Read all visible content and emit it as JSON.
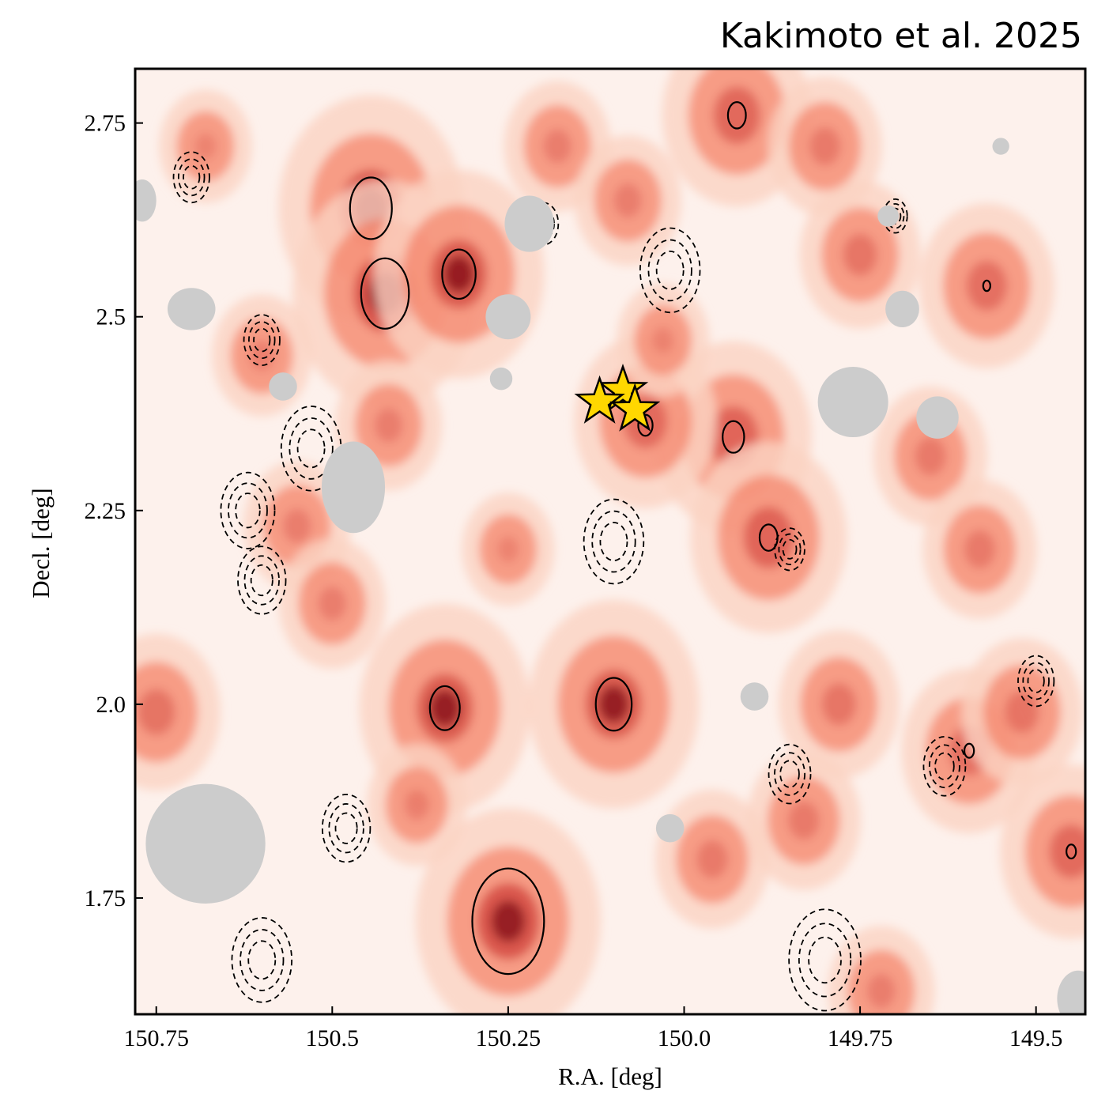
{
  "chart_data": {
    "type": "heatmap",
    "title": "Kakimoto et al. 2025",
    "xlabel": "R.A. [deg]",
    "ylabel": "Decl. [deg]",
    "xlim": [
      150.78,
      149.43
    ],
    "ylim": [
      1.6,
      2.82
    ],
    "x_inverted": true,
    "x_ticks": [
      150.75,
      150.5,
      150.25,
      150.0,
      149.75,
      149.5
    ],
    "x_tick_labels": [
      "150.75",
      "150.5",
      "150.25",
      "150.0",
      "149.75",
      "149.5"
    ],
    "y_ticks": [
      1.75,
      2.0,
      2.25,
      2.5,
      2.75
    ],
    "y_tick_labels": [
      "1.75",
      "2.0",
      "2.25",
      "2.5",
      "2.75"
    ],
    "colormap": "Reds",
    "colors": {
      "background": "#fdf1ec",
      "low": "#fbd3c3",
      "mid": "#f26a4d",
      "high": "#c3201f",
      "peak": "#7a0510",
      "mask": "#cccccc",
      "star_fill": "#ffd700",
      "star_edge": "#000000"
    },
    "overdensity_peaks": [
      {
        "ra": 150.445,
        "dec": 2.64,
        "strength": 1.0
      },
      {
        "ra": 150.425,
        "dec": 2.53,
        "strength": 1.0
      },
      {
        "ra": 150.32,
        "dec": 2.555,
        "strength": 0.9
      },
      {
        "ra": 150.25,
        "dec": 1.72,
        "strength": 1.0
      },
      {
        "ra": 150.34,
        "dec": 1.995,
        "strength": 0.9
      },
      {
        "ra": 150.1,
        "dec": 2.0,
        "strength": 0.9
      },
      {
        "ra": 149.93,
        "dec": 2.345,
        "strength": 0.8
      },
      {
        "ra": 149.88,
        "dec": 2.215,
        "strength": 0.8
      },
      {
        "ra": 149.925,
        "dec": 2.76,
        "strength": 0.75
      },
      {
        "ra": 149.57,
        "dec": 2.54,
        "strength": 0.65
      },
      {
        "ra": 149.595,
        "dec": 1.94,
        "strength": 0.65
      },
      {
        "ra": 150.055,
        "dec": 2.365,
        "strength": 0.7
      },
      {
        "ra": 150.55,
        "dec": 2.23,
        "strength": 0.45
      },
      {
        "ra": 150.25,
        "dec": 2.2,
        "strength": 0.35
      },
      {
        "ra": 149.75,
        "dec": 2.58,
        "strength": 0.55
      },
      {
        "ra": 149.8,
        "dec": 2.72,
        "strength": 0.5
      },
      {
        "ra": 149.65,
        "dec": 2.32,
        "strength": 0.5
      },
      {
        "ra": 149.58,
        "dec": 2.2,
        "strength": 0.5
      },
      {
        "ra": 149.78,
        "dec": 2.0,
        "strength": 0.55
      },
      {
        "ra": 149.52,
        "dec": 1.99,
        "strength": 0.55
      },
      {
        "ra": 149.45,
        "dec": 1.81,
        "strength": 0.7
      },
      {
        "ra": 149.83,
        "dec": 1.85,
        "strength": 0.5
      },
      {
        "ra": 150.38,
        "dec": 1.87,
        "strength": 0.4
      },
      {
        "ra": 150.75,
        "dec": 1.99,
        "strength": 0.6
      },
      {
        "ra": 150.6,
        "dec": 2.45,
        "strength": 0.4
      },
      {
        "ra": 150.68,
        "dec": 2.72,
        "strength": 0.35
      },
      {
        "ra": 150.18,
        "dec": 2.72,
        "strength": 0.45
      },
      {
        "ra": 150.08,
        "dec": 2.65,
        "strength": 0.45
      },
      {
        "ra": 150.42,
        "dec": 2.36,
        "strength": 0.45
      },
      {
        "ra": 150.5,
        "dec": 2.13,
        "strength": 0.45
      },
      {
        "ra": 149.72,
        "dec": 1.63,
        "strength": 0.45
      },
      {
        "ra": 150.03,
        "dec": 2.47,
        "strength": 0.35
      },
      {
        "ra": 149.96,
        "dec": 1.8,
        "strength": 0.5
      }
    ],
    "solid_contours": [
      {
        "ra": 150.445,
        "dec": 2.64,
        "r": 0.035
      },
      {
        "ra": 150.425,
        "dec": 2.53,
        "r": 0.04
      },
      {
        "ra": 150.32,
        "dec": 2.555,
        "r": 0.028
      },
      {
        "ra": 150.25,
        "dec": 1.72,
        "r": 0.06
      },
      {
        "ra": 150.34,
        "dec": 1.995,
        "r": 0.025
      },
      {
        "ra": 150.1,
        "dec": 2.0,
        "r": 0.03
      },
      {
        "ra": 149.93,
        "dec": 2.345,
        "r": 0.018
      },
      {
        "ra": 149.88,
        "dec": 2.215,
        "r": 0.015
      },
      {
        "ra": 149.925,
        "dec": 2.76,
        "r": 0.015
      },
      {
        "ra": 149.57,
        "dec": 2.54,
        "r": 0.006
      },
      {
        "ra": 149.595,
        "dec": 1.94,
        "r": 0.008
      },
      {
        "ra": 150.055,
        "dec": 2.36,
        "r": 0.012
      },
      {
        "ra": 149.45,
        "dec": 1.81,
        "r": 0.008
      }
    ],
    "dashed_contours": [
      {
        "ra": 150.02,
        "dec": 2.56,
        "r": 0.05
      },
      {
        "ra": 150.53,
        "dec": 2.33,
        "r": 0.05
      },
      {
        "ra": 150.1,
        "dec": 2.21,
        "r": 0.05
      },
      {
        "ra": 150.62,
        "dec": 2.25,
        "r": 0.045
      },
      {
        "ra": 150.6,
        "dec": 2.16,
        "r": 0.04
      },
      {
        "ra": 149.8,
        "dec": 1.67,
        "r": 0.06
      },
      {
        "ra": 150.6,
        "dec": 1.67,
        "r": 0.05
      },
      {
        "ra": 150.48,
        "dec": 1.84,
        "r": 0.04
      },
      {
        "ra": 149.85,
        "dec": 1.91,
        "r": 0.035
      },
      {
        "ra": 149.63,
        "dec": 1.92,
        "r": 0.035
      },
      {
        "ra": 150.2,
        "dec": 2.62,
        "r": 0.025
      },
      {
        "ra": 150.6,
        "dec": 2.47,
        "r": 0.03
      },
      {
        "ra": 149.5,
        "dec": 2.03,
        "r": 0.03
      },
      {
        "ra": 149.85,
        "dec": 2.2,
        "r": 0.025
      },
      {
        "ra": 150.7,
        "dec": 2.68,
        "r": 0.03
      },
      {
        "ra": 149.7,
        "dec": 2.63,
        "r": 0.02
      }
    ],
    "masked_regions": [
      {
        "ra": 150.68,
        "dec": 1.82,
        "rx": 0.085,
        "ry": 0.085
      },
      {
        "ra": 150.47,
        "dec": 2.28,
        "rx": 0.045,
        "ry": 0.065
      },
      {
        "ra": 150.22,
        "dec": 2.62,
        "rx": 0.035,
        "ry": 0.04
      },
      {
        "ra": 150.25,
        "dec": 2.5,
        "rx": 0.032,
        "ry": 0.032
      },
      {
        "ra": 150.26,
        "dec": 2.42,
        "rx": 0.016,
        "ry": 0.016
      },
      {
        "ra": 150.7,
        "dec": 2.51,
        "rx": 0.034,
        "ry": 0.03
      },
      {
        "ra": 150.57,
        "dec": 2.41,
        "rx": 0.02,
        "ry": 0.02
      },
      {
        "ra": 149.76,
        "dec": 2.39,
        "rx": 0.05,
        "ry": 0.05
      },
      {
        "ra": 149.64,
        "dec": 2.37,
        "rx": 0.03,
        "ry": 0.03
      },
      {
        "ra": 149.69,
        "dec": 2.51,
        "rx": 0.024,
        "ry": 0.026
      },
      {
        "ra": 149.71,
        "dec": 2.63,
        "rx": 0.015,
        "ry": 0.015
      },
      {
        "ra": 149.55,
        "dec": 2.72,
        "rx": 0.012,
        "ry": 0.012
      },
      {
        "ra": 149.9,
        "dec": 2.01,
        "rx": 0.02,
        "ry": 0.02
      },
      {
        "ra": 150.02,
        "dec": 1.84,
        "rx": 0.02,
        "ry": 0.02
      },
      {
        "ra": 150.77,
        "dec": 2.65,
        "rx": 0.02,
        "ry": 0.03
      },
      {
        "ra": 149.44,
        "dec": 1.62,
        "rx": 0.03,
        "ry": 0.04
      }
    ],
    "stars": [
      {
        "ra": 150.087,
        "dec": 2.405
      },
      {
        "ra": 150.12,
        "dec": 2.39
      },
      {
        "ra": 150.07,
        "dec": 2.38
      }
    ]
  }
}
